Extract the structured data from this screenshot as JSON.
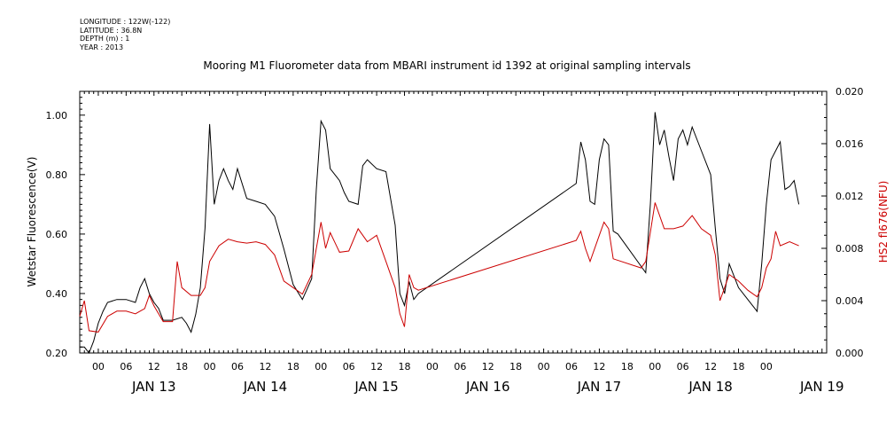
{
  "header": {
    "longitude": "LONGITUDE : 122W(-122)",
    "latitude": "LATITUDE : 36.8N",
    "depth": "DEPTH (m) : 1",
    "year": "YEAR : 2013"
  },
  "chart_data": {
    "type": "line",
    "title": "Mooring M1 Fluorometer data from MBARI instrument id 1392 at original sampling intervals",
    "ylabel": "Wetstar Fluorescence(V)",
    "y2label": "HS2 fl676(NFU)",
    "x_hours_ticks": [
      "00",
      "06",
      "12",
      "18",
      "00",
      "06",
      "12",
      "18",
      "00",
      "06",
      "12",
      "18",
      "00",
      "06",
      "12",
      "18",
      "00",
      "06",
      "12",
      "18",
      "00",
      "06",
      "12",
      "18",
      "00"
    ],
    "x_day_labels": [
      "JAN 13",
      "JAN 14",
      "JAN 15",
      "JAN 16",
      "JAN 17",
      "JAN 18",
      "JAN 19"
    ],
    "xlim": [
      "2013-01-12 20:00",
      "2013-01-19 13:00"
    ],
    "ylim": [
      0.2,
      1.08
    ],
    "y_ticks": [
      "0.20",
      "0.40",
      "0.60",
      "0.80",
      "1.00"
    ],
    "y2lim": [
      0.0,
      0.02
    ],
    "y2_ticks": [
      "0.000",
      "0.004",
      "0.008",
      "0.012",
      "0.016",
      "0.020"
    ],
    "colors": {
      "series1": "#000000",
      "series2": "#cc0000",
      "axis2_label": "#cc0000"
    },
    "series": [
      {
        "axis": "left",
        "x": [
          "2013-01-12 20:00",
          "2013-01-12 21:00",
          "2013-01-12 22:00",
          "2013-01-12 23:00",
          "2013-01-13 00:00",
          "2013-01-13 01:00",
          "2013-01-13 02:00",
          "2013-01-13 04:00",
          "2013-01-13 06:00",
          "2013-01-13 08:00",
          "2013-01-13 09:00",
          "2013-01-13 10:00",
          "2013-01-13 11:00",
          "2013-01-13 12:00",
          "2013-01-13 13:00",
          "2013-01-13 14:00",
          "2013-01-13 16:00",
          "2013-01-13 18:00",
          "2013-01-13 19:00",
          "2013-01-13 20:00",
          "2013-01-13 21:00",
          "2013-01-13 22:00",
          "2013-01-13 23:00",
          "2013-01-14 00:00",
          "2013-01-14 01:00",
          "2013-01-14 02:00",
          "2013-01-14 03:00",
          "2013-01-14 04:00",
          "2013-01-14 05:00",
          "2013-01-14 06:00",
          "2013-01-14 08:00",
          "2013-01-14 10:00",
          "2013-01-14 12:00",
          "2013-01-14 14:00",
          "2013-01-14 16:00",
          "2013-01-14 18:00",
          "2013-01-14 20:00",
          "2013-01-14 22:00",
          "2013-01-14 23:00",
          "2013-01-15 00:00",
          "2013-01-15 01:00",
          "2013-01-15 02:00",
          "2013-01-15 04:00",
          "2013-01-15 05:00",
          "2013-01-15 06:00",
          "2013-01-15 08:00",
          "2013-01-15 09:00",
          "2013-01-15 10:00",
          "2013-01-15 12:00",
          "2013-01-15 14:00",
          "2013-01-15 16:00",
          "2013-01-15 17:00",
          "2013-01-15 18:00",
          "2013-01-15 19:00",
          "2013-01-15 20:00",
          "2013-01-15 21:00",
          "2013-01-17 07:00",
          "2013-01-17 08:00",
          "2013-01-17 09:00",
          "2013-01-17 10:00",
          "2013-01-17 11:00",
          "2013-01-17 12:00",
          "2013-01-17 13:00",
          "2013-01-17 14:00",
          "2013-01-17 15:00",
          "2013-01-17 16:00",
          "2013-01-17 22:00",
          "2013-01-17 23:00",
          "2013-01-18 00:00",
          "2013-01-18 01:00",
          "2013-01-18 02:00",
          "2013-01-18 03:00",
          "2013-01-18 04:00",
          "2013-01-18 05:00",
          "2013-01-18 06:00",
          "2013-01-18 07:00",
          "2013-01-18 08:00",
          "2013-01-18 10:00",
          "2013-01-18 12:00",
          "2013-01-18 13:00",
          "2013-01-18 14:00",
          "2013-01-18 15:00",
          "2013-01-18 16:00",
          "2013-01-18 18:00",
          "2013-01-18 20:00",
          "2013-01-18 22:00",
          "2013-01-18 23:00",
          "2013-01-19 00:00",
          "2013-01-19 01:00",
          "2013-01-19 03:00",
          "2013-01-19 04:00",
          "2013-01-19 05:00",
          "2013-01-19 06:00",
          "2013-01-19 07:00"
        ],
        "values": [
          0.22,
          0.22,
          0.2,
          0.24,
          0.3,
          0.34,
          0.37,
          0.38,
          0.38,
          0.37,
          0.42,
          0.45,
          0.4,
          0.37,
          0.35,
          0.31,
          0.31,
          0.32,
          0.3,
          0.27,
          0.33,
          0.42,
          0.62,
          0.97,
          0.7,
          0.78,
          0.82,
          0.78,
          0.75,
          0.82,
          0.72,
          0.71,
          0.7,
          0.66,
          0.55,
          0.43,
          0.38,
          0.45,
          0.75,
          0.98,
          0.95,
          0.82,
          0.78,
          0.74,
          0.71,
          0.7,
          0.83,
          0.85,
          0.82,
          0.81,
          0.63,
          0.4,
          0.36,
          0.44,
          0.38,
          0.4,
          0.77,
          0.91,
          0.85,
          0.71,
          0.7,
          0.85,
          0.92,
          0.9,
          0.61,
          0.6,
          0.47,
          0.7,
          1.01,
          0.9,
          0.95,
          0.86,
          0.78,
          0.92,
          0.95,
          0.9,
          0.96,
          0.88,
          0.8,
          0.62,
          0.45,
          0.4,
          0.5,
          0.42,
          0.38,
          0.34,
          0.5,
          0.7,
          0.85,
          0.91,
          0.75,
          0.76,
          0.78,
          0.7
        ]
      },
      {
        "axis": "right",
        "x": [
          "2013-01-12 20:00",
          "2013-01-12 21:00",
          "2013-01-12 22:00",
          "2013-01-13 00:00",
          "2013-01-13 02:00",
          "2013-01-13 04:00",
          "2013-01-13 06:00",
          "2013-01-13 08:00",
          "2013-01-13 10:00",
          "2013-01-13 11:00",
          "2013-01-13 12:00",
          "2013-01-13 14:00",
          "2013-01-13 16:00",
          "2013-01-13 17:00",
          "2013-01-13 18:00",
          "2013-01-13 20:00",
          "2013-01-13 21:00",
          "2013-01-13 22:00",
          "2013-01-13 23:00",
          "2013-01-14 00:00",
          "2013-01-14 02:00",
          "2013-01-14 04:00",
          "2013-01-14 06:00",
          "2013-01-14 08:00",
          "2013-01-14 10:00",
          "2013-01-14 12:00",
          "2013-01-14 14:00",
          "2013-01-14 16:00",
          "2013-01-14 18:00",
          "2013-01-14 20:00",
          "2013-01-14 22:00",
          "2013-01-15 00:00",
          "2013-01-15 01:00",
          "2013-01-15 02:00",
          "2013-01-15 04:00",
          "2013-01-15 06:00",
          "2013-01-15 08:00",
          "2013-01-15 10:00",
          "2013-01-15 12:00",
          "2013-01-15 14:00",
          "2013-01-15 16:00",
          "2013-01-15 17:00",
          "2013-01-15 18:00",
          "2013-01-15 19:00",
          "2013-01-15 20:00",
          "2013-01-15 21:00",
          "2013-01-17 07:00",
          "2013-01-17 08:00",
          "2013-01-17 09:00",
          "2013-01-17 10:00",
          "2013-01-17 12:00",
          "2013-01-17 13:00",
          "2013-01-17 14:00",
          "2013-01-17 15:00",
          "2013-01-17 21:00",
          "2013-01-17 22:00",
          "2013-01-18 00:00",
          "2013-01-18 02:00",
          "2013-01-18 04:00",
          "2013-01-18 06:00",
          "2013-01-18 08:00",
          "2013-01-18 10:00",
          "2013-01-18 12:00",
          "2013-01-18 13:00",
          "2013-01-18 14:00",
          "2013-01-18 16:00",
          "2013-01-18 18:00",
          "2013-01-18 20:00",
          "2013-01-18 22:00",
          "2013-01-18 23:00",
          "2013-01-19 00:00",
          "2013-01-19 01:00",
          "2013-01-19 02:00",
          "2013-01-19 03:00",
          "2013-01-19 05:00",
          "2013-01-19 07:00"
        ],
        "values": [
          0.0028,
          0.004,
          0.0017,
          0.0016,
          0.0028,
          0.0032,
          0.0032,
          0.003,
          0.0034,
          0.0044,
          0.0036,
          0.0024,
          0.0024,
          0.007,
          0.005,
          0.0044,
          0.0044,
          0.0044,
          0.005,
          0.007,
          0.0082,
          0.0087,
          0.0085,
          0.0084,
          0.0085,
          0.0083,
          0.0075,
          0.0055,
          0.005,
          0.0045,
          0.006,
          0.01,
          0.008,
          0.0092,
          0.0077,
          0.0078,
          0.0095,
          0.0085,
          0.009,
          0.007,
          0.005,
          0.003,
          0.002,
          0.006,
          0.005,
          0.0048,
          0.0086,
          0.0093,
          0.008,
          0.007,
          0.009,
          0.01,
          0.0095,
          0.0072,
          0.0065,
          0.007,
          0.0115,
          0.0095,
          0.0095,
          0.0097,
          0.0105,
          0.0095,
          0.009,
          0.0075,
          0.004,
          0.006,
          0.0055,
          0.0048,
          0.0043,
          0.005,
          0.0065,
          0.0072,
          0.0093,
          0.0082,
          0.0085,
          0.0082
        ]
      }
    ]
  }
}
